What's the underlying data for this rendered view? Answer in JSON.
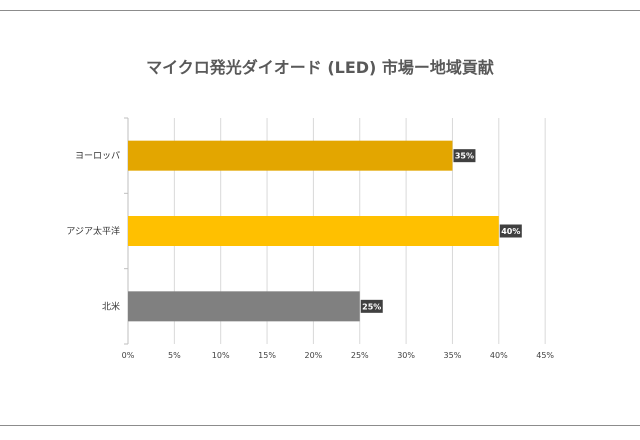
{
  "chart_data": {
    "type": "bar",
    "orientation": "horizontal",
    "title": "マイクロ発光ダイオード (LED) 市場ー地域貢献",
    "categories": [
      "ヨーロッパ",
      "アジア太平洋",
      "北米"
    ],
    "values": [
      35,
      40,
      25
    ],
    "data_labels": [
      "35%",
      "40%",
      "25%"
    ],
    "bar_colors": [
      "#e3a600",
      "#ffc000",
      "#808080"
    ],
    "x_ticks": [
      "0%",
      "5%",
      "10%",
      "15%",
      "20%",
      "25%",
      "30%",
      "35%",
      "40%",
      "45%"
    ],
    "xlim": [
      0,
      45
    ],
    "xlabel": "",
    "ylabel": "",
    "grid": true
  }
}
